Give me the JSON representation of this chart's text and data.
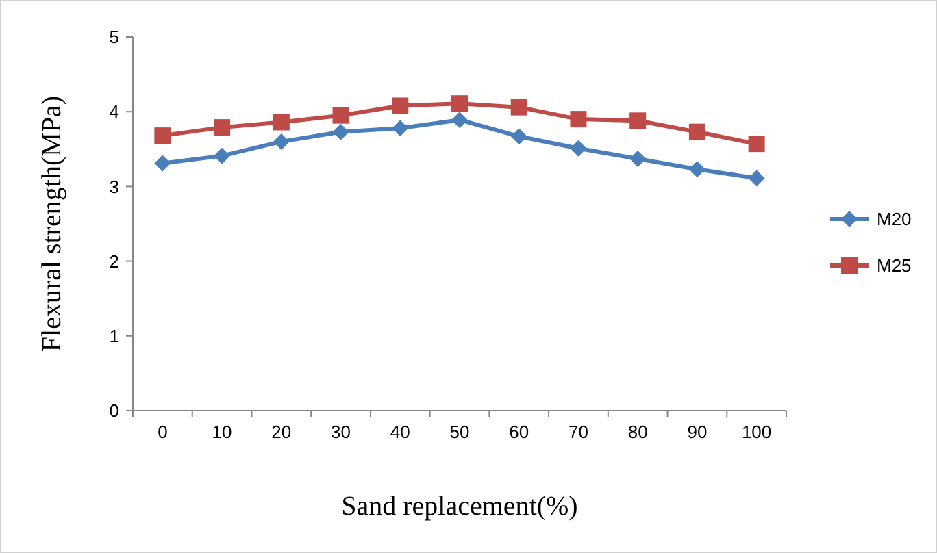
{
  "chart_data": {
    "type": "line",
    "xlabel": "Sand replacement(%)",
    "ylabel": "Flexural strength(MPa)",
    "categories": [
      "0",
      "10",
      "20",
      "30",
      "40",
      "50",
      "60",
      "70",
      "80",
      "90",
      "100"
    ],
    "series": [
      {
        "name": "M20",
        "color": "#4a7ebb",
        "marker": "diamond",
        "values": [
          3.31,
          3.41,
          3.6,
          3.73,
          3.78,
          3.89,
          3.67,
          3.51,
          3.37,
          3.23,
          3.11
        ]
      },
      {
        "name": "M25",
        "color": "#be4b48",
        "marker": "square",
        "values": [
          3.68,
          3.79,
          3.86,
          3.95,
          4.08,
          4.11,
          4.06,
          3.9,
          3.88,
          3.73,
          3.57
        ]
      }
    ],
    "ylim": [
      0,
      5
    ],
    "yticks": [
      0,
      1,
      2,
      3,
      4,
      5
    ],
    "grid": false,
    "legend": "right",
    "line_style": "solid"
  }
}
